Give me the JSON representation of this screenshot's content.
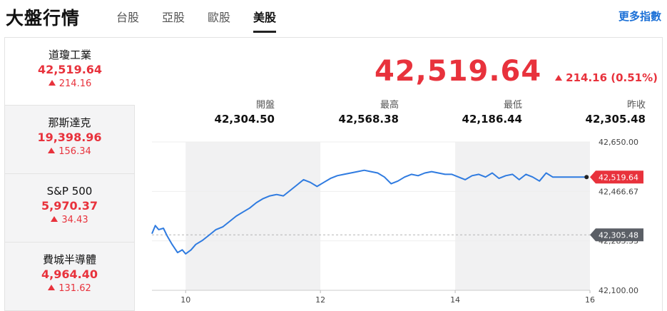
{
  "header": {
    "title": "大盤行情",
    "tabs": [
      {
        "label": "台股"
      },
      {
        "label": "亞股"
      },
      {
        "label": "歐股"
      },
      {
        "label": "美股"
      }
    ],
    "active_tab": "美股",
    "more_link": "更多指數"
  },
  "sidebar": {
    "items": [
      {
        "name": "道瓊工業",
        "value": "42,519.64",
        "change": "214.16"
      },
      {
        "name": "那斯達克",
        "value": "19,398.96",
        "change": "156.34"
      },
      {
        "name": "S&P 500",
        "value": "5,970.37",
        "change": "34.43"
      },
      {
        "name": "費城半導體",
        "value": "4,964.40",
        "change": "131.62"
      }
    ]
  },
  "quote": {
    "price": "42,519.64",
    "change": "214.16 (0.51%)",
    "stats": [
      {
        "label": "開盤",
        "value": "42,304.50"
      },
      {
        "label": "最高",
        "value": "42,568.38"
      },
      {
        "label": "最低",
        "value": "42,186.44"
      },
      {
        "label": "昨收",
        "value": "42,305.48"
      }
    ]
  },
  "colors": {
    "up": "#e8323c",
    "line": "#2f7be0",
    "prev_close_badge": "#5b5f66"
  },
  "chart_data": {
    "type": "line",
    "x_ticks": [
      "10",
      "12",
      "14",
      "16"
    ],
    "y_ticks": [
      "42,650.00",
      "42,466.67",
      "42,283.33",
      "42,100.00"
    ],
    "ylim": [
      42100,
      42650
    ],
    "xlim": [
      9.5,
      16
    ],
    "last_value_label": "42,519.64",
    "prev_close_label": "42,305.48",
    "prev_close": 42305.48,
    "shaded_hours": [
      [
        10,
        12
      ],
      [
        14,
        16
      ]
    ],
    "series": [
      {
        "x": [
          9.5,
          9.55,
          9.6,
          9.67,
          9.73,
          9.8,
          9.88,
          9.95,
          10.0,
          10.08,
          10.15,
          10.25,
          10.35,
          10.45,
          10.55,
          10.65,
          10.75,
          10.85,
          10.95,
          11.05,
          11.15,
          11.25,
          11.35,
          11.45,
          11.55,
          11.65,
          11.75,
          11.85,
          11.95,
          12.05,
          12.15,
          12.25,
          12.35,
          12.45,
          12.55,
          12.65,
          12.75,
          12.85,
          12.95,
          13.05,
          13.15,
          13.25,
          13.35,
          13.45,
          13.55,
          13.65,
          13.75,
          13.85,
          13.95,
          14.05,
          14.15,
          14.25,
          14.35,
          14.45,
          14.55,
          14.65,
          14.75,
          14.85,
          14.95,
          15.05,
          15.15,
          15.25,
          15.35,
          15.45,
          15.55,
          15.65,
          15.75,
          15.85,
          15.95,
          16.0
        ],
        "y": [
          42310,
          42340,
          42325,
          42330,
          42300,
          42270,
          42240,
          42250,
          42235,
          42250,
          42270,
          42285,
          42305,
          42325,
          42335,
          42355,
          42375,
          42390,
          42405,
          42425,
          42440,
          42450,
          42455,
          42450,
          42470,
          42490,
          42510,
          42500,
          42485,
          42500,
          42515,
          42525,
          42530,
          42535,
          42540,
          42545,
          42540,
          42535,
          42520,
          42495,
          42505,
          42520,
          42530,
          42525,
          42535,
          42540,
          42535,
          42530,
          42530,
          42520,
          42510,
          42525,
          42530,
          42520,
          42535,
          42515,
          42525,
          42530,
          42510,
          42530,
          42520,
          42505,
          42535,
          42519.64,
          42519.64,
          42519.64,
          42519.64,
          42519.64,
          42519.64,
          42519.64
        ]
      }
    ]
  }
}
